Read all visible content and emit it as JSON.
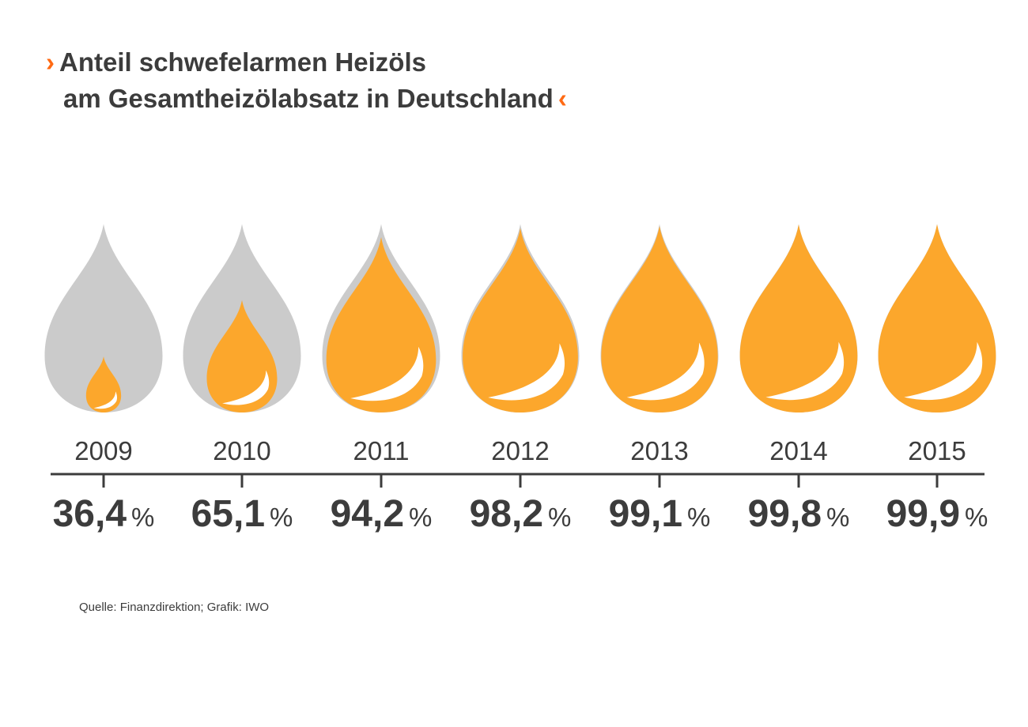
{
  "header": {
    "chevron_open": "›",
    "chevron_close": "‹",
    "title_line1": "Anteil schwefelarmen Heizöls",
    "title_line2": "am Gesamtheizölabsatz in Deutschland"
  },
  "chart_data": {
    "type": "bar",
    "title": "Anteil schwefelarmen Heizöls am Gesamtheizölabsatz in Deutschland",
    "categories": [
      "2009",
      "2010",
      "2011",
      "2012",
      "2013",
      "2014",
      "2015"
    ],
    "values": [
      36.4,
      65.1,
      94.2,
      98.2,
      99.1,
      99.8,
      99.9
    ],
    "value_labels": [
      "36,4",
      "65,1",
      "94,2",
      "98,2",
      "99,1",
      "99,8",
      "99,9"
    ],
    "unit": "%",
    "ylim": [
      0,
      100
    ],
    "grid": false,
    "colors": {
      "filled": "#fca72c",
      "empty": "#cbcbcb",
      "text": "#3c3c3c",
      "accent": "#ff6a13"
    }
  },
  "footer": {
    "source": "Quelle: Finanzdirektion; Grafik: IWO"
  }
}
